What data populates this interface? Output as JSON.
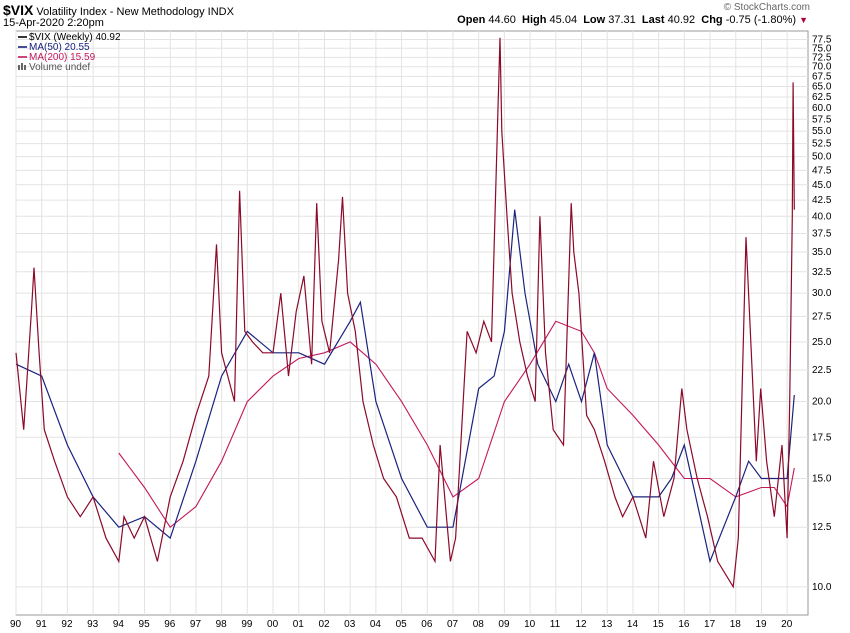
{
  "header": {
    "symbol": "$VIX",
    "name": "Volatility Index - New Methodology",
    "exchange": "INDX",
    "date": "15-Apr-2020 2:20pm",
    "brand": "© StockCharts.com",
    "open_label": "Open",
    "open": "44.60",
    "high_label": "High",
    "high": "45.04",
    "low_label": "Low",
    "low": "37.31",
    "last_label": "Last",
    "last": "40.92",
    "chg_label": "Chg",
    "chg": "-0.75 (-1.80%)"
  },
  "legend": [
    {
      "label": "$VIX (Weekly) 40.92",
      "color": "#000000"
    },
    {
      "label": "MA(50) 20.55",
      "color": "#1a237e"
    },
    {
      "label": "MA(200) 15.59",
      "color": "#c2185b"
    },
    {
      "label": "Volume undef",
      "color": "#555555"
    }
  ],
  "chart_data": {
    "type": "line",
    "title": "$VIX Volatility Index - New Methodology INDX",
    "colors": {
      "price": "#8b0a2a",
      "ma50": "#1a237e",
      "ma200": "#c2185b",
      "grid": "#e3e3e3"
    },
    "ylim": [
      9,
      80
    ],
    "y_ticks": [
      10.0,
      12.5,
      15.0,
      17.5,
      20.0,
      22.5,
      25.0,
      27.5,
      30.0,
      32.5,
      35.0,
      37.5,
      40.0,
      42.5,
      45.0,
      47.5,
      50.0,
      52.5,
      55.0,
      57.5,
      60.0,
      62.5,
      65.0,
      67.5,
      70.0,
      72.5,
      75.0,
      77.5
    ],
    "y_scale": "log",
    "x_ticks": [
      "90",
      "91",
      "92",
      "93",
      "94",
      "95",
      "96",
      "97",
      "98",
      "99",
      "00",
      "01",
      "02",
      "03",
      "04",
      "05",
      "06",
      "07",
      "08",
      "09",
      "10",
      "11",
      "12",
      "13",
      "14",
      "15",
      "16",
      "17",
      "18",
      "19",
      "20"
    ],
    "xlim": [
      1990.0,
      2020.5
    ],
    "grid": true,
    "series": [
      {
        "name": "$VIX (Weekly)",
        "x": [
          1990.0,
          1990.3,
          1990.6,
          1990.7,
          1990.9,
          1991.1,
          1991.5,
          1992.0,
          1992.5,
          1993.0,
          1993.5,
          1994.0,
          1994.2,
          1994.6,
          1995.0,
          1995.5,
          1996.0,
          1996.5,
          1997.0,
          1997.5,
          1997.8,
          1998.0,
          1998.5,
          1998.7,
          1998.9,
          1999.2,
          1999.6,
          2000.0,
          2000.3,
          2000.6,
          2000.9,
          2001.2,
          2001.5,
          2001.7,
          2001.9,
          2002.2,
          2002.55,
          2002.7,
          2002.9,
          2003.2,
          2003.5,
          2003.9,
          2004.3,
          2004.8,
          2005.3,
          2005.8,
          2006.3,
          2006.5,
          2006.9,
          2007.1,
          2007.55,
          2007.9,
          2008.2,
          2008.5,
          2008.75,
          2008.83,
          2008.9,
          2009.1,
          2009.3,
          2009.6,
          2009.9,
          2010.2,
          2010.38,
          2010.6,
          2010.9,
          2011.3,
          2011.6,
          2011.7,
          2011.9,
          2012.2,
          2012.5,
          2012.9,
          2013.3,
          2013.6,
          2014.0,
          2014.5,
          2014.8,
          2015.2,
          2015.6,
          2015.9,
          2016.1,
          2016.5,
          2016.9,
          2017.3,
          2017.9,
          2018.1,
          2018.4,
          2018.8,
          2018.97,
          2019.2,
          2019.5,
          2019.8,
          2020.0,
          2020.1,
          2020.2,
          2020.23,
          2020.26,
          2020.28
        ],
        "values": [
          24,
          18,
          28,
          33,
          24,
          18,
          16,
          14,
          13,
          14,
          12,
          11,
          13,
          12,
          13,
          11,
          14,
          16,
          19,
          22,
          36,
          24,
          20,
          44,
          26,
          25,
          24,
          24,
          30,
          22,
          28,
          32,
          23,
          42,
          27,
          24,
          34,
          43,
          30,
          26,
          20,
          17,
          15,
          14,
          12,
          12,
          11,
          17,
          11,
          12,
          26,
          24,
          27,
          25,
          60,
          78,
          55,
          40,
          30,
          25,
          22,
          20,
          40,
          24,
          18,
          17,
          42,
          35,
          30,
          19,
          18,
          16,
          14,
          13,
          14,
          12,
          16,
          13,
          15,
          21,
          18,
          15,
          13,
          11,
          10,
          12,
          37,
          16,
          21,
          16,
          13,
          17,
          12,
          20,
          40,
          66,
          50,
          41
        ]
      },
      {
        "name": "MA(50)",
        "x": [
          1990.0,
          1991.0,
          1992.0,
          1993.0,
          1994.0,
          1995.0,
          1996.0,
          1997.0,
          1998.0,
          1999.0,
          2000.0,
          2001.0,
          2002.0,
          2003.0,
          2003.4,
          2004.0,
          2005.0,
          2006.0,
          2007.0,
          2008.0,
          2008.6,
          2009.0,
          2009.4,
          2009.8,
          2010.3,
          2011.0,
          2011.5,
          2012.0,
          2012.5,
          2013.0,
          2014.0,
          2015.0,
          2015.5,
          2016.0,
          2017.0,
          2018.0,
          2018.5,
          2019.0,
          2019.5,
          2020.0,
          2020.28
        ],
        "values": [
          23,
          22,
          17,
          14,
          12.5,
          13,
          12,
          16,
          22,
          26,
          24,
          24,
          23,
          27,
          29,
          20,
          15,
          12.5,
          12.5,
          21,
          22,
          26,
          41,
          30,
          23,
          20,
          23,
          20,
          24,
          17,
          14,
          14,
          15,
          17,
          11,
          14,
          16,
          15,
          15,
          15,
          20.5
        ]
      },
      {
        "name": "MA(200)",
        "x": [
          1994.0,
          1995.0,
          1996.0,
          1997.0,
          1998.0,
          1999.0,
          2000.0,
          2001.0,
          2002.0,
          2003.0,
          2004.0,
          2005.0,
          2006.0,
          2007.0,
          2008.0,
          2009.0,
          2010.0,
          2011.0,
          2012.0,
          2012.5,
          2013.0,
          2014.0,
          2015.0,
          2016.0,
          2017.0,
          2018.0,
          2019.0,
          2019.5,
          2020.0,
          2020.28
        ],
        "values": [
          16.5,
          14.5,
          12.5,
          13.5,
          16,
          20,
          22,
          23.5,
          24,
          25,
          23,
          20,
          17,
          14,
          15,
          20,
          23,
          27,
          26,
          24,
          21,
          19,
          17,
          15,
          15,
          14,
          14.5,
          14.5,
          13.5,
          15.6
        ]
      }
    ]
  }
}
